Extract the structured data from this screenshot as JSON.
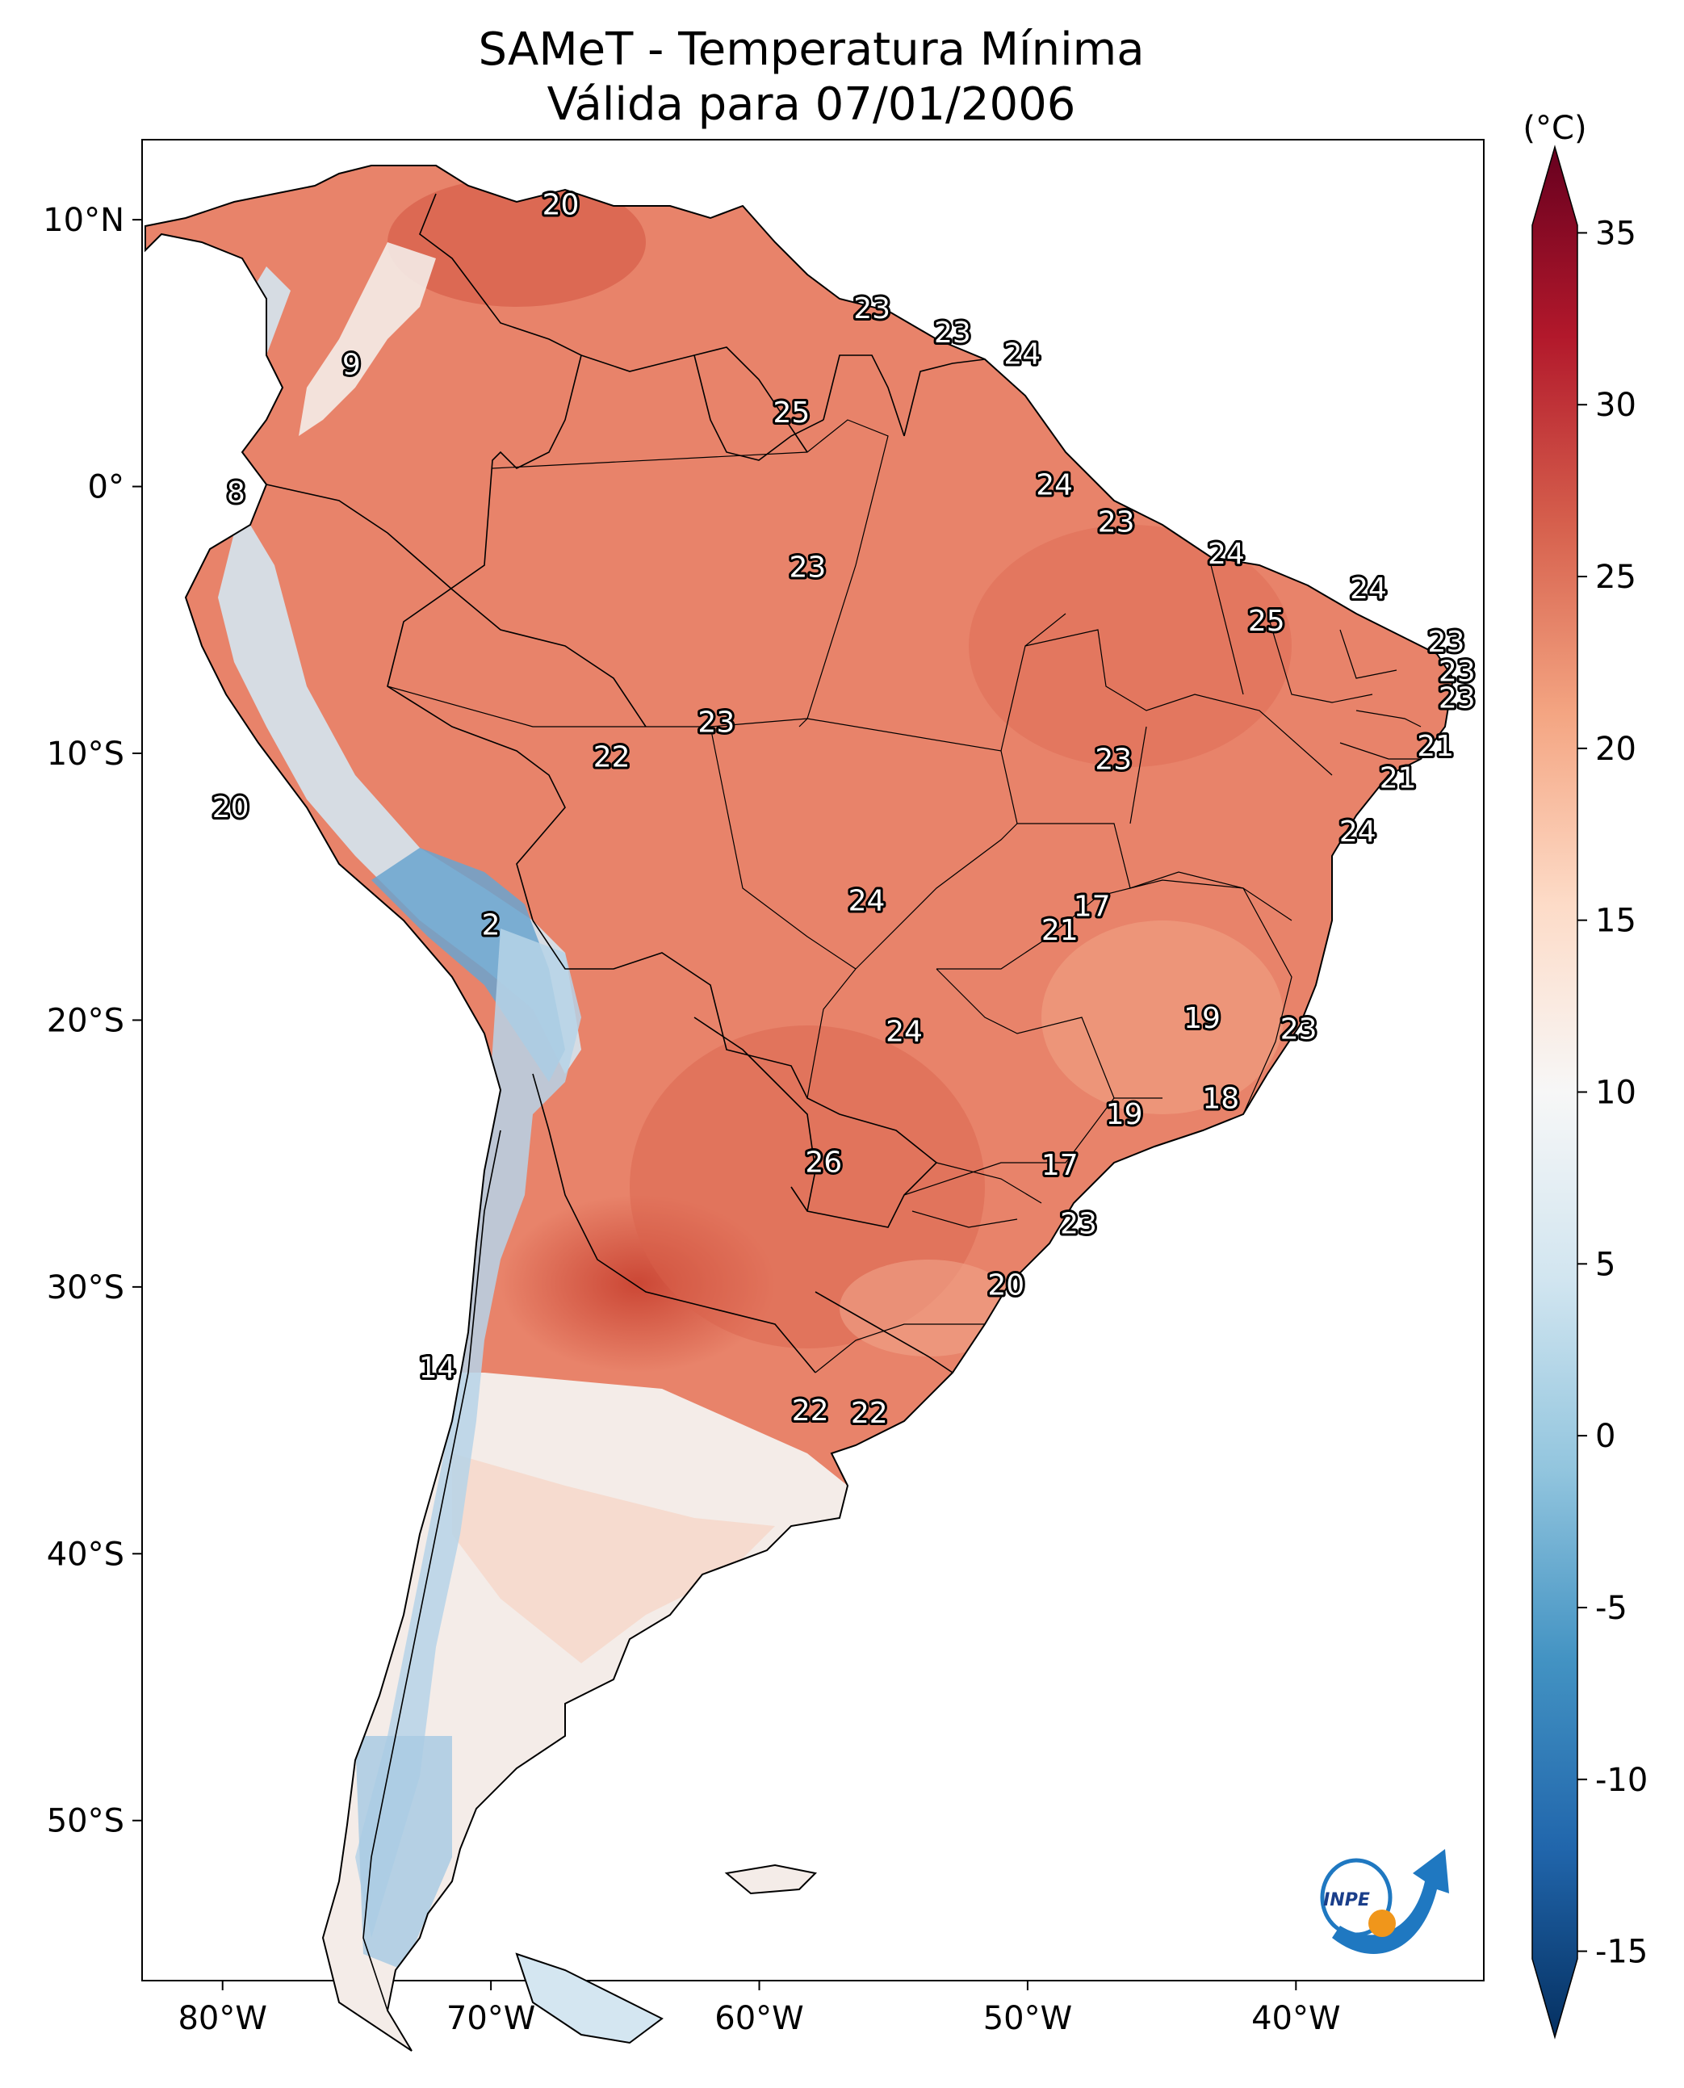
{
  "title": {
    "line1": "SAMeT - Temperatura Mínima",
    "line2": "Válida para 07/01/2006"
  },
  "map": {
    "lon_range": [
      -83,
      -33
    ],
    "lat_range": [
      -56,
      13
    ],
    "lon_ticks": [
      {
        "value": -80,
        "label": "80°W"
      },
      {
        "value": -70,
        "label": "70°W"
      },
      {
        "value": -60,
        "label": "60°W"
      },
      {
        "value": -50,
        "label": "50°W"
      },
      {
        "value": -40,
        "label": "40°W"
      }
    ],
    "lat_ticks": [
      {
        "value": 10,
        "label": "10°N"
      },
      {
        "value": 0,
        "label": "0°"
      },
      {
        "value": -10,
        "label": "10°S"
      },
      {
        "value": -20,
        "label": "20°S"
      },
      {
        "value": -30,
        "label": "30°S"
      },
      {
        "value": -40,
        "label": "40°S"
      },
      {
        "value": -50,
        "label": "50°S"
      }
    ],
    "points": [
      {
        "lon": -67.4,
        "lat": 10.6,
        "value": "20"
      },
      {
        "lon": -75.2,
        "lat": 4.6,
        "value": "9"
      },
      {
        "lon": -79.5,
        "lat": -0.2,
        "value": "8"
      },
      {
        "lon": -55.8,
        "lat": 6.7,
        "value": "23"
      },
      {
        "lon": -52.8,
        "lat": 5.8,
        "value": "23"
      },
      {
        "lon": -50.2,
        "lat": 5.0,
        "value": "24"
      },
      {
        "lon": -58.8,
        "lat": 2.8,
        "value": "25"
      },
      {
        "lon": -49.0,
        "lat": 0.1,
        "value": "24"
      },
      {
        "lon": -46.7,
        "lat": -1.3,
        "value": "23"
      },
      {
        "lon": -58.2,
        "lat": -3.0,
        "value": "23"
      },
      {
        "lon": -42.6,
        "lat": -2.5,
        "value": "24"
      },
      {
        "lon": -41.1,
        "lat": -5.0,
        "value": "25"
      },
      {
        "lon": -37.3,
        "lat": -3.8,
        "value": "24"
      },
      {
        "lon": -34.4,
        "lat": -5.8,
        "value": "23"
      },
      {
        "lon": -34.0,
        "lat": -6.9,
        "value": "23"
      },
      {
        "lon": -34.0,
        "lat": -7.9,
        "value": "23"
      },
      {
        "lon": -61.6,
        "lat": -8.8,
        "value": "23"
      },
      {
        "lon": -65.5,
        "lat": -10.1,
        "value": "22"
      },
      {
        "lon": -34.8,
        "lat": -9.7,
        "value": "21"
      },
      {
        "lon": -46.8,
        "lat": -10.2,
        "value": "23"
      },
      {
        "lon": -36.2,
        "lat": -10.9,
        "value": "21"
      },
      {
        "lon": -79.7,
        "lat": -12.0,
        "value": "20"
      },
      {
        "lon": -37.7,
        "lat": -12.9,
        "value": "24"
      },
      {
        "lon": -56.0,
        "lat": -15.5,
        "value": "24"
      },
      {
        "lon": -47.6,
        "lat": -15.7,
        "value": "17"
      },
      {
        "lon": -48.8,
        "lat": -16.6,
        "value": "21"
      },
      {
        "lon": -70.0,
        "lat": -16.4,
        "value": "2"
      },
      {
        "lon": -43.5,
        "lat": -19.9,
        "value": "19"
      },
      {
        "lon": -54.6,
        "lat": -20.4,
        "value": "24"
      },
      {
        "lon": -39.9,
        "lat": -20.3,
        "value": "23"
      },
      {
        "lon": -42.8,
        "lat": -22.9,
        "value": "18"
      },
      {
        "lon": -46.4,
        "lat": -23.5,
        "value": "19"
      },
      {
        "lon": -57.6,
        "lat": -25.3,
        "value": "26"
      },
      {
        "lon": -48.8,
        "lat": -25.4,
        "value": "17"
      },
      {
        "lon": -48.1,
        "lat": -27.6,
        "value": "23"
      },
      {
        "lon": -50.8,
        "lat": -29.9,
        "value": "20"
      },
      {
        "lon": -72.0,
        "lat": -33.0,
        "value": "14"
      },
      {
        "lon": -58.1,
        "lat": -34.6,
        "value": "22"
      },
      {
        "lon": -55.9,
        "lat": -34.7,
        "value": "22"
      }
    ]
  },
  "colorbar": {
    "unit": "(°C)",
    "range": [
      -17.5,
      37.5
    ],
    "ticks": [
      {
        "value": 35,
        "label": "35"
      },
      {
        "value": 30,
        "label": "30"
      },
      {
        "value": 25,
        "label": "25"
      },
      {
        "value": 20,
        "label": "20"
      },
      {
        "value": 15,
        "label": "15"
      },
      {
        "value": 10,
        "label": "10"
      },
      {
        "value": 5,
        "label": "5"
      },
      {
        "value": 0,
        "label": "0"
      },
      {
        "value": -5,
        "label": "-5"
      },
      {
        "value": -10,
        "label": "-10"
      },
      {
        "value": -15,
        "label": "-15"
      }
    ],
    "stops": [
      "#053061",
      "#2166ac",
      "#4393c3",
      "#92c5de",
      "#d1e5f0",
      "#f7f7f7",
      "#fddbc7",
      "#f4a582",
      "#d6604d",
      "#b2182b",
      "#67001f"
    ]
  },
  "logo": {
    "text": "INPE"
  },
  "colors": {
    "warm": "#e8836a",
    "hot": "#d1533f",
    "mild": "#f2b8a0",
    "cool": "#f4ece8",
    "cold": "#b6d4e8",
    "colder": "#6aa4cf"
  }
}
